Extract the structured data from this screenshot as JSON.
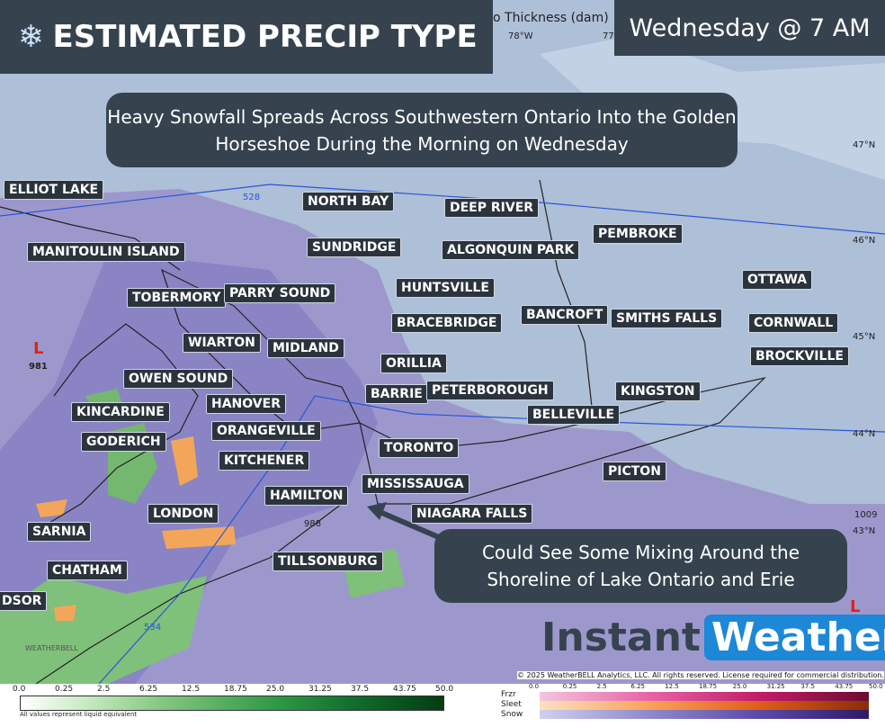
{
  "header": {
    "title": "ESTIMATED PRECIP TYPE",
    "time": "Wednesday @ 7 AM"
  },
  "map": {
    "top_label": "o Thickness (dam)",
    "lon_labels": [
      "78°W",
      "77"
    ],
    "lat_labels": [
      "47°N",
      "46°N",
      "45°N",
      "44°N",
      "43°N"
    ],
    "contour_labels": [
      "528",
      "534",
      "988",
      "1009"
    ],
    "pressure": {
      "symbol": "L",
      "value": "981"
    },
    "pressure_right": "L"
  },
  "callouts": [
    "Heavy Snowfall Spreads Across Southwestern Ontario Into the Golden Horseshoe During the Morning on Wednesday",
    "Could See Some Mixing Around the Shoreline of Lake Ontario and Erie"
  ],
  "cities": [
    "ELLIOT LAKE",
    "NORTH BAY",
    "DEEP RIVER",
    "MANITOULIN ISLAND",
    "SUNDRIDGE",
    "ALGONQUIN PARK",
    "PEMBROKE",
    "TOBERMORY",
    "PARRY SOUND",
    "HUNTSVILLE",
    "OTTAWA",
    "BANCROFT",
    "SMITHS FALLS",
    "CORNWALL",
    "BRACEBRIDGE",
    "WIARTON",
    "MIDLAND",
    "BROCKVILLE",
    "ORILLIA",
    "OWEN SOUND",
    "BARRIE",
    "PETERBOROUGH",
    "KINGSTON",
    "HANOVER",
    "KINCARDINE",
    "BELLEVILLE",
    "ORANGEVILLE",
    "GODERICH",
    "TORONTO",
    "KITCHENER",
    "PICTON",
    "MISSISSAUGA",
    "HAMILTON",
    "NIAGARA FALLS",
    "LONDON",
    "SARNIA",
    "TILLSONBURG",
    "CHATHAM",
    "DSOR"
  ],
  "legend": {
    "left": {
      "ticks": [
        "0.0",
        "0.25",
        "2.5",
        "6.25",
        "12.5",
        "18.75",
        "25.0",
        "31.25",
        "37.5",
        "43.75",
        "50.0"
      ],
      "note": "All values represent liquid equivalent"
    },
    "right": {
      "rows": [
        "Frzr",
        "Sleet",
        "Snow"
      ],
      "ticks": [
        "0.0",
        "0.25",
        "2.5",
        "6.25",
        "12.5",
        "18.75",
        "25.0",
        "31.25",
        "37.5",
        "43.75",
        "50.0"
      ]
    }
  },
  "credit": "© 2025 WeatherBELL Analytics, LLC. All rights reserved. License required for commercial distribution.",
  "logo": {
    "part1": "Instant",
    "part2": "Weather",
    "small": "WEATHERBELL"
  }
}
